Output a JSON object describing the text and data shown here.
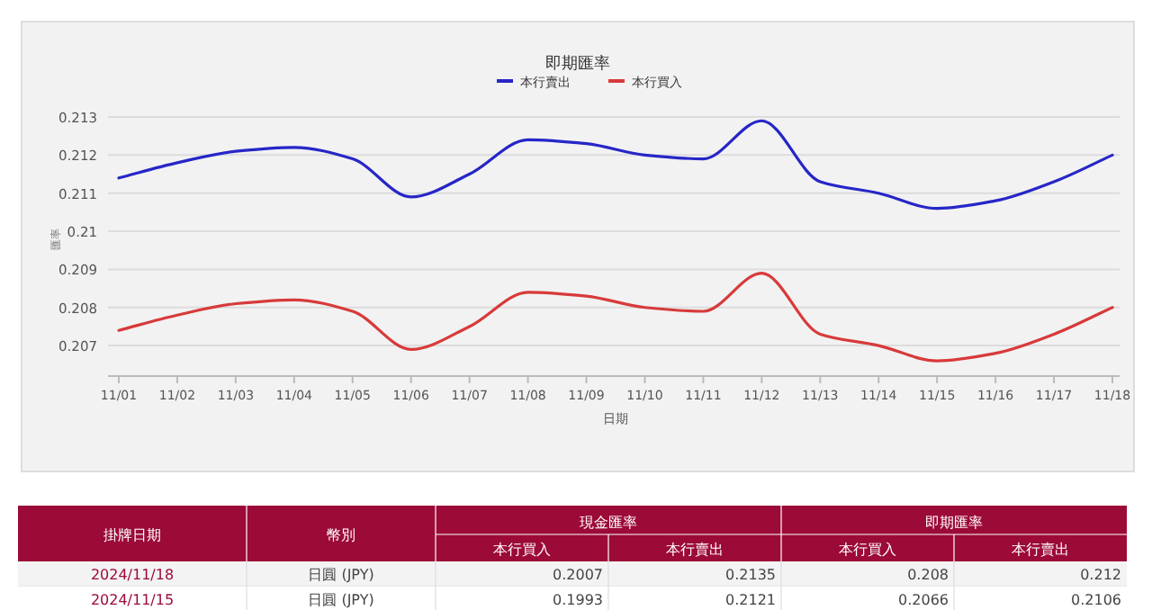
{
  "chart_data": [
    {
      "type": "line",
      "title": "即期匯率",
      "xlabel": "日期",
      "ylabel": "匯率",
      "categories": [
        "11/01",
        "11/02",
        "11/03",
        "11/04",
        "11/05",
        "11/06",
        "11/07",
        "11/08",
        "11/09",
        "11/10",
        "11/11",
        "11/12",
        "11/13",
        "11/14",
        "11/15",
        "11/16",
        "11/17",
        "11/18"
      ],
      "series": [
        {
          "name": "本行賣出",
          "color": "#2626c8",
          "values": [
            0.2114,
            0.2118,
            0.2121,
            0.2122,
            0.2119,
            0.2109,
            0.2115,
            0.2124,
            0.2123,
            0.212,
            0.2119,
            0.2129,
            0.2113,
            0.211,
            0.2106,
            0.2108,
            0.2113,
            0.212
          ]
        },
        {
          "name": "本行買入",
          "color": "#d83a3a",
          "values": [
            0.2074,
            0.2078,
            0.2081,
            0.2082,
            0.2079,
            0.2069,
            0.2075,
            0.2084,
            0.2083,
            0.208,
            0.2079,
            0.2089,
            0.2073,
            0.207,
            0.2066,
            0.2068,
            0.2073,
            0.208
          ]
        }
      ],
      "ylim": [
        0.2062,
        0.213
      ],
      "yticks": [
        0.207,
        0.208,
        0.209,
        0.21,
        0.211,
        0.212,
        0.213
      ],
      "grid": "y",
      "legend": "top",
      "marker": "none",
      "line_style": "solid"
    },
    {
      "type": "other",
      "annotations": [
        "掛牌日期",
        "幣別",
        "現金匯率",
        "即期匯率",
        "本行買入",
        "本行賣出",
        "本行買入",
        "本行賣出",
        "2024/11/18",
        "日圓 (JPY)",
        "0.2007",
        "0.2135",
        "0.208",
        "0.212",
        "2024/11/15",
        "日圓 (JPY)",
        "0.1993",
        "0.2121",
        "0.2066",
        "0.2106"
      ]
    }
  ]
}
